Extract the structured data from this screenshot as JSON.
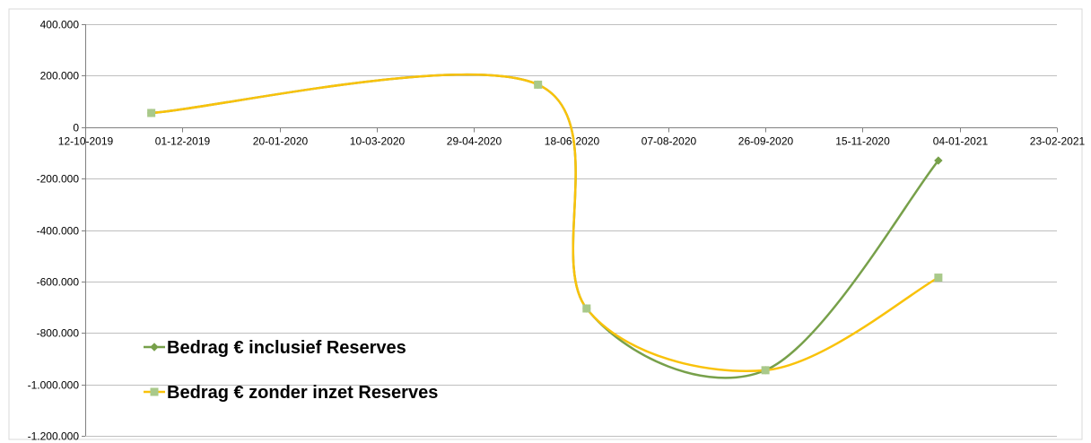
{
  "chart_data": {
    "type": "line",
    "title": "",
    "xlabel": "",
    "ylabel": "",
    "x_ticks": [
      "12-10-2019",
      "01-12-2019",
      "20-01-2020",
      "10-03-2020",
      "29-04-2020",
      "18-06-2020",
      "07-08-2020",
      "26-09-2020",
      "15-11-2020",
      "04-01-2021",
      "23-02-2021"
    ],
    "y_ticks": [
      "400.000",
      "200.000",
      "0",
      "-200.000",
      "-400.000",
      "-600.000",
      "-800.000",
      "-1.000.000",
      "-1.200.000"
    ],
    "xlim": [
      "2019-10-12",
      "2021-02-23"
    ],
    "ylim": [
      -1200000,
      400000
    ],
    "grid": "horizontal",
    "smooth": true,
    "legend_position": "bottom-left",
    "series": [
      {
        "name": "Bedrag €  inclusief Reserves",
        "color": "#77A04A",
        "marker": "diamond",
        "points": [
          {
            "x": "2019-11-15",
            "y": 55000
          },
          {
            "x": "2020-06-01",
            "y": 165000
          },
          {
            "x": "2020-06-26",
            "y": -705000
          },
          {
            "x": "2020-09-26",
            "y": -945000
          },
          {
            "x": "2020-12-24",
            "y": -130000
          }
        ]
      },
      {
        "name": "Bedrag €   zonder inzet Reserves",
        "color": "#F9C20A",
        "marker": "square",
        "marker_color": "#A9C98A",
        "points": [
          {
            "x": "2019-11-15",
            "y": 55000
          },
          {
            "x": "2020-06-01",
            "y": 165000
          },
          {
            "x": "2020-06-26",
            "y": -705000
          },
          {
            "x": "2020-09-26",
            "y": -945000
          },
          {
            "x": "2020-12-24",
            "y": -585000
          }
        ]
      }
    ]
  }
}
